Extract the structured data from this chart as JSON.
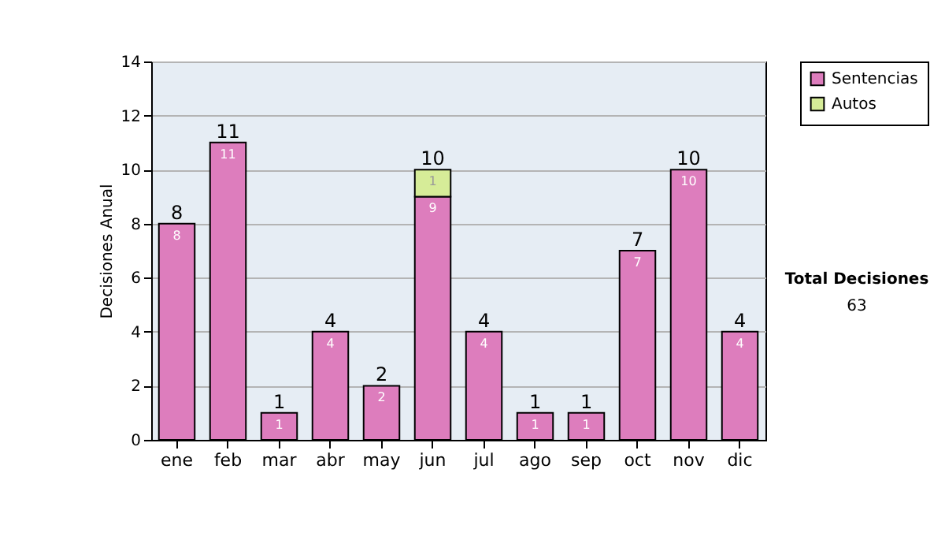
{
  "chart_data": {
    "type": "bar",
    "stacked": true,
    "ylabel": "Decisiones Anual",
    "categories": [
      "ene",
      "feb",
      "mar",
      "abr",
      "may",
      "jun",
      "jul",
      "ago",
      "sep",
      "oct",
      "nov",
      "dic"
    ],
    "series": [
      {
        "name": "Sentencias",
        "color": "#dd7dbd",
        "values": [
          8,
          11,
          1,
          4,
          2,
          9,
          4,
          1,
          1,
          7,
          10,
          4
        ]
      },
      {
        "name": "Autos",
        "color": "#d6ec98",
        "values": [
          null,
          null,
          null,
          null,
          null,
          1,
          null,
          null,
          null,
          null,
          null,
          null
        ]
      }
    ],
    "ylim": [
      0,
      14
    ],
    "yticks": [
      0,
      2,
      4,
      6,
      8,
      10,
      12,
      14
    ],
    "grid": "y",
    "legend": "right",
    "data_labels": true,
    "totals": [
      "8",
      "11",
      "1",
      "4",
      "2",
      "10",
      "4",
      "1",
      "1",
      "7",
      "10",
      "4"
    ],
    "annotations": [
      "Total Decisiones",
      "63"
    ]
  }
}
